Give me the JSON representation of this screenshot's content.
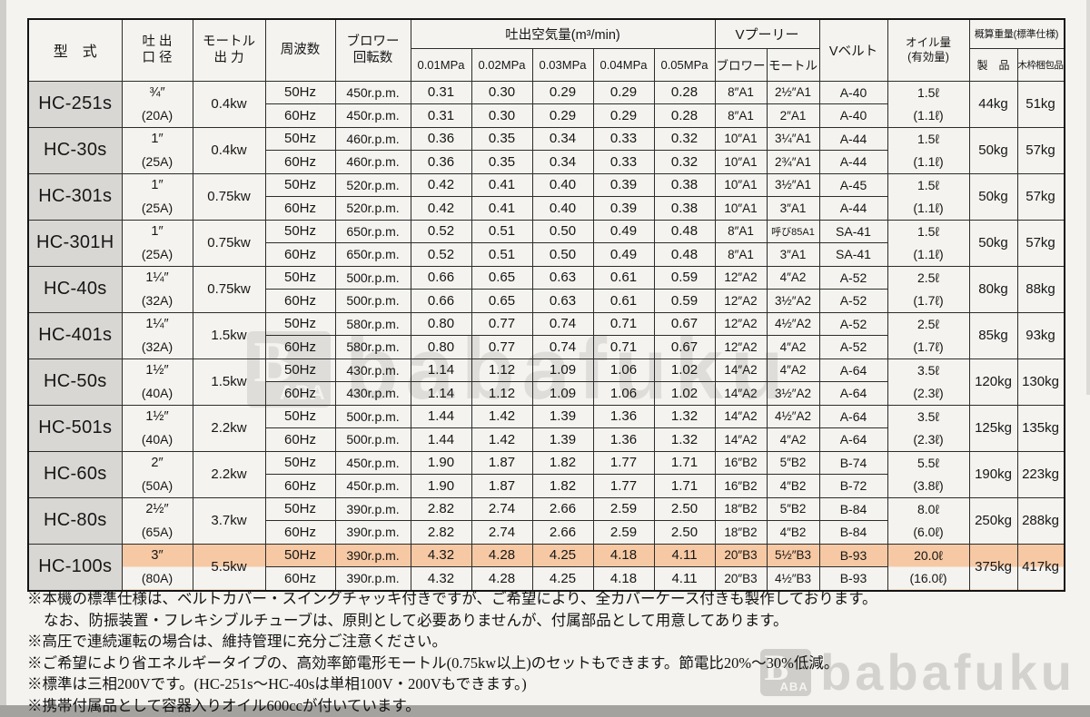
{
  "header": {
    "model": "型　式",
    "bore": [
      "吐 出",
      "口 径"
    ],
    "motor": [
      "モートル",
      "出 力"
    ],
    "freq": "周波数",
    "rpm": [
      "ブロワー",
      "回転数"
    ],
    "airflow_group": "吐出空気量(m³/min)",
    "mpa": [
      "0.01MPa",
      "0.02MPa",
      "0.03MPa",
      "0.04MPa",
      "0.05MPa"
    ],
    "pulley_group": "Vプーリー",
    "pulley_blower": "ブロワー",
    "pulley_motor": "モートル",
    "vbelt": "Vベルト",
    "oil": [
      "オイル量",
      "(有効量)"
    ],
    "weight_group": "概算重量(標準仕様)",
    "weight_product": "製　品",
    "weight_crate": "木枠梱包品"
  },
  "highlight_color": "#f6c9a4",
  "models": [
    {
      "name": "HC-251s",
      "bore": "¾″",
      "bore_a": "(20A)",
      "motor": "0.4kw",
      "oil": "1.5ℓ",
      "oil_eff": "(1.1ℓ)",
      "w_product": "44kg",
      "w_crate": "51kg",
      "highlight": false,
      "rows": [
        {
          "freq": "50Hz",
          "rpm": "450r.p.m.",
          "air": [
            "0.31",
            "0.30",
            "0.29",
            "0.29",
            "0.28"
          ],
          "pb": "8″A1",
          "pm": "2½″A1",
          "belt": "A-40"
        },
        {
          "freq": "60Hz",
          "rpm": "450r.p.m.",
          "air": [
            "0.31",
            "0.30",
            "0.29",
            "0.29",
            "0.28"
          ],
          "pb": "8″A1",
          "pm": "2″A1",
          "belt": "A-40"
        }
      ]
    },
    {
      "name": "HC-30s",
      "bore": "1″",
      "bore_a": "(25A)",
      "motor": "0.4kw",
      "oil": "1.5ℓ",
      "oil_eff": "(1.1ℓ)",
      "w_product": "50kg",
      "w_crate": "57kg",
      "highlight": false,
      "rows": [
        {
          "freq": "50Hz",
          "rpm": "460r.p.m.",
          "air": [
            "0.36",
            "0.35",
            "0.34",
            "0.33",
            "0.32"
          ],
          "pb": "10″A1",
          "pm": "3¼″A1",
          "belt": "A-44"
        },
        {
          "freq": "60Hz",
          "rpm": "460r.p.m.",
          "air": [
            "0.36",
            "0.35",
            "0.34",
            "0.33",
            "0.32"
          ],
          "pb": "10″A1",
          "pm": "2¾″A1",
          "belt": "A-44"
        }
      ]
    },
    {
      "name": "HC-301s",
      "bore": "1″",
      "bore_a": "(25A)",
      "motor": "0.75kw",
      "oil": "1.5ℓ",
      "oil_eff": "(1.1ℓ)",
      "w_product": "50kg",
      "w_crate": "57kg",
      "highlight": false,
      "rows": [
        {
          "freq": "50Hz",
          "rpm": "520r.p.m.",
          "air": [
            "0.42",
            "0.41",
            "0.40",
            "0.39",
            "0.38"
          ],
          "pb": "10″A1",
          "pm": "3½″A1",
          "belt": "A-45"
        },
        {
          "freq": "60Hz",
          "rpm": "520r.p.m.",
          "air": [
            "0.42",
            "0.41",
            "0.40",
            "0.39",
            "0.38"
          ],
          "pb": "10″A1",
          "pm": "3″A1",
          "belt": "A-44"
        }
      ]
    },
    {
      "name": "HC-301H",
      "bore": "1″",
      "bore_a": "(25A)",
      "motor": "0.75kw",
      "oil": "1.5ℓ",
      "oil_eff": "(1.1ℓ)",
      "w_product": "50kg",
      "w_crate": "57kg",
      "highlight": false,
      "rows": [
        {
          "freq": "50Hz",
          "rpm": "650r.p.m.",
          "air": [
            "0.52",
            "0.51",
            "0.50",
            "0.49",
            "0.48"
          ],
          "pb": "8″A1",
          "pm": "呼び85A1",
          "belt": "SA-41"
        },
        {
          "freq": "60Hz",
          "rpm": "650r.p.m.",
          "air": [
            "0.52",
            "0.51",
            "0.50",
            "0.49",
            "0.48"
          ],
          "pb": "8″A1",
          "pm": "3″A1",
          "belt": "SA-41"
        }
      ]
    },
    {
      "name": "HC-40s",
      "bore": "1¼″",
      "bore_a": "(32A)",
      "motor": "0.75kw",
      "oil": "2.5ℓ",
      "oil_eff": "(1.7ℓ)",
      "w_product": "80kg",
      "w_crate": "88kg",
      "highlight": false,
      "rows": [
        {
          "freq": "50Hz",
          "rpm": "500r.p.m.",
          "air": [
            "0.66",
            "0.65",
            "0.63",
            "0.61",
            "0.59"
          ],
          "pb": "12″A2",
          "pm": "4″A2",
          "belt": "A-52"
        },
        {
          "freq": "60Hz",
          "rpm": "500r.p.m.",
          "air": [
            "0.66",
            "0.65",
            "0.63",
            "0.61",
            "0.59"
          ],
          "pb": "12″A2",
          "pm": "3½″A2",
          "belt": "A-52"
        }
      ]
    },
    {
      "name": "HC-401s",
      "bore": "1¼″",
      "bore_a": "(32A)",
      "motor": "1.5kw",
      "oil": "2.5ℓ",
      "oil_eff": "(1.7ℓ)",
      "w_product": "85kg",
      "w_crate": "93kg",
      "highlight": false,
      "rows": [
        {
          "freq": "50Hz",
          "rpm": "580r.p.m.",
          "air": [
            "0.80",
            "0.77",
            "0.74",
            "0.71",
            "0.67"
          ],
          "pb": "12″A2",
          "pm": "4½″A2",
          "belt": "A-52"
        },
        {
          "freq": "60Hz",
          "rpm": "580r.p.m.",
          "air": [
            "0.80",
            "0.77",
            "0.74",
            "0.71",
            "0.67"
          ],
          "pb": "12″A2",
          "pm": "4″A2",
          "belt": "A-52"
        }
      ]
    },
    {
      "name": "HC-50s",
      "bore": "1½″",
      "bore_a": "(40A)",
      "motor": "1.5kw",
      "oil": "3.5ℓ",
      "oil_eff": "(2.3ℓ)",
      "w_product": "120kg",
      "w_crate": "130kg",
      "highlight": false,
      "rows": [
        {
          "freq": "50Hz",
          "rpm": "430r.p.m.",
          "air": [
            "1.14",
            "1.12",
            "1.09",
            "1.06",
            "1.02"
          ],
          "pb": "14″A2",
          "pm": "4″A2",
          "belt": "A-64"
        },
        {
          "freq": "60Hz",
          "rpm": "430r.p.m.",
          "air": [
            "1.14",
            "1.12",
            "1.09",
            "1.06",
            "1.02"
          ],
          "pb": "14″A2",
          "pm": "3½″A2",
          "belt": "A-64"
        }
      ]
    },
    {
      "name": "HC-501s",
      "bore": "1½″",
      "bore_a": "(40A)",
      "motor": "2.2kw",
      "oil": "3.5ℓ",
      "oil_eff": "(2.3ℓ)",
      "w_product": "125kg",
      "w_crate": "135kg",
      "highlight": false,
      "rows": [
        {
          "freq": "50Hz",
          "rpm": "500r.p.m.",
          "air": [
            "1.44",
            "1.42",
            "1.39",
            "1.36",
            "1.32"
          ],
          "pb": "14″A2",
          "pm": "4½″A2",
          "belt": "A-64"
        },
        {
          "freq": "60Hz",
          "rpm": "500r.p.m.",
          "air": [
            "1.44",
            "1.42",
            "1.39",
            "1.36",
            "1.32"
          ],
          "pb": "14″A2",
          "pm": "4″A2",
          "belt": "A-64"
        }
      ]
    },
    {
      "name": "HC-60s",
      "bore": "2″",
      "bore_a": "(50A)",
      "motor": "2.2kw",
      "oil": "5.5ℓ",
      "oil_eff": "(3.8ℓ)",
      "w_product": "190kg",
      "w_crate": "223kg",
      "highlight": false,
      "rows": [
        {
          "freq": "50Hz",
          "rpm": "450r.p.m.",
          "air": [
            "1.90",
            "1.87",
            "1.82",
            "1.77",
            "1.71"
          ],
          "pb": "16″B2",
          "pm": "5″B2",
          "belt": "B-74"
        },
        {
          "freq": "60Hz",
          "rpm": "450r.p.m.",
          "air": [
            "1.90",
            "1.87",
            "1.82",
            "1.77",
            "1.71"
          ],
          "pb": "16″B2",
          "pm": "4″B2",
          "belt": "B-72"
        }
      ]
    },
    {
      "name": "HC-80s",
      "bore": "2½″",
      "bore_a": "(65A)",
      "motor": "3.7kw",
      "oil": "8.0ℓ",
      "oil_eff": "(6.0ℓ)",
      "w_product": "250kg",
      "w_crate": "288kg",
      "highlight": false,
      "rows": [
        {
          "freq": "50Hz",
          "rpm": "390r.p.m.",
          "air": [
            "2.82",
            "2.74",
            "2.66",
            "2.59",
            "2.50"
          ],
          "pb": "18″B2",
          "pm": "5″B2",
          "belt": "B-84"
        },
        {
          "freq": "60Hz",
          "rpm": "390r.p.m.",
          "air": [
            "2.82",
            "2.74",
            "2.66",
            "2.59",
            "2.50"
          ],
          "pb": "18″B2",
          "pm": "4″B2",
          "belt": "B-84"
        }
      ]
    },
    {
      "name": "HC-100s",
      "bore": "3″",
      "bore_a": "(80A)",
      "motor": "5.5kw",
      "oil": "20.0ℓ",
      "oil_eff": "(16.0ℓ)",
      "w_product": "375kg",
      "w_crate": "417kg",
      "highlight": true,
      "rows": [
        {
          "freq": "50Hz",
          "rpm": "390r.p.m.",
          "air": [
            "4.32",
            "4.28",
            "4.25",
            "4.18",
            "4.11"
          ],
          "pb": "20″B3",
          "pm": "5½″B3",
          "belt": "B-93"
        },
        {
          "freq": "60Hz",
          "rpm": "390r.p.m.",
          "air": [
            "4.32",
            "4.28",
            "4.25",
            "4.18",
            "4.11"
          ],
          "pb": "20″B3",
          "pm": "4½″B3",
          "belt": "B-93"
        }
      ]
    }
  ],
  "notes": [
    {
      "text": "※本機の標準仕様は、ベルトカバー・スイングチャッキ付きですが、ご希望により、全カバーケース付きも製作しております。",
      "indent": false
    },
    {
      "text": "なお、防振装置・フレキシブルチューブは、原則として必要ありませんが、付属部品として用意してあります。",
      "indent": true
    },
    {
      "text": "※高圧で連続運転の場合は、維持管理に充分ご注意ください。",
      "indent": false
    },
    {
      "text": "※ご希望により省エネルギータイプの、高効率節電形モートル(0.75kw以上)のセットもできます。節電比20%〜30%低減。",
      "indent": false
    },
    {
      "text": "※標準は三相200Vです。(HC-251s〜HC-40sは単相100V・200Vもできます。)",
      "indent": false
    },
    {
      "text": "※携帯付属品として容器入りオイル600ccが付いています。",
      "indent": false
    }
  ],
  "watermark": {
    "text": "babafuku",
    "logo_b": "B",
    "logo_sub": "ABA"
  }
}
